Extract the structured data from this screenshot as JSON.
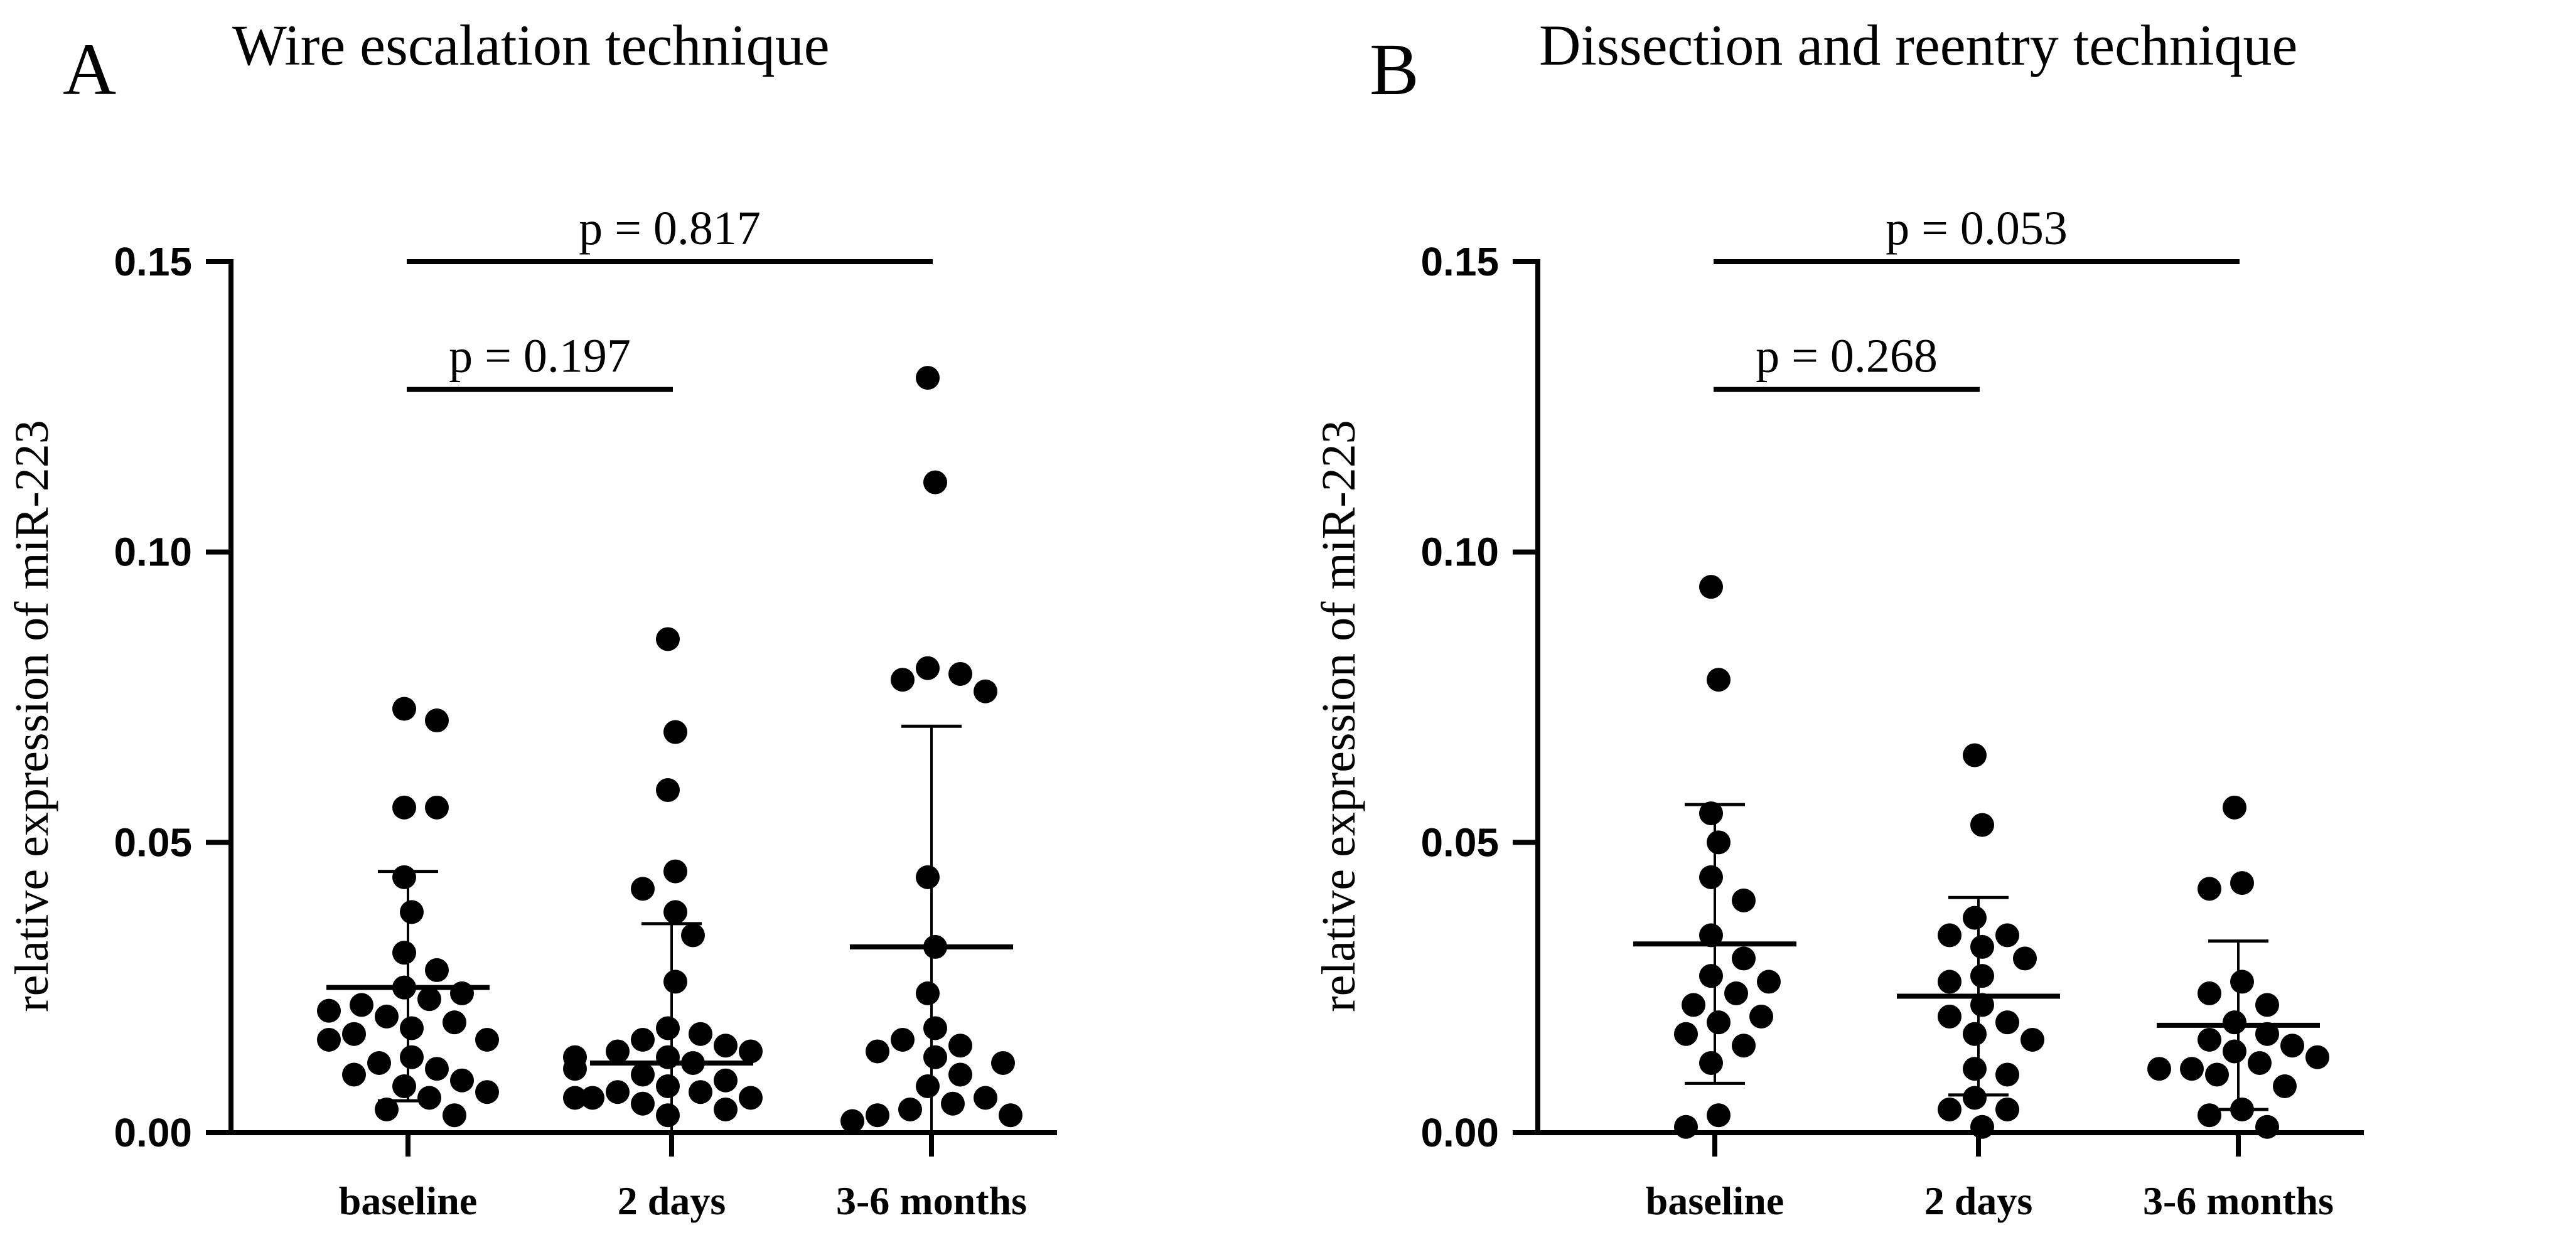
{
  "chart_data": [
    {
      "type": "scatter",
      "panel_label": "A",
      "title": "Wire escalation technique",
      "ylabel": "relative expression of miR-223",
      "xlabel": "",
      "categories": [
        "baseline",
        "2 days",
        "3-6 months"
      ],
      "ylim": [
        0,
        0.15
      ],
      "yticks": [
        "0.00",
        "0.05",
        "0.10",
        "0.15"
      ],
      "grid": false,
      "groups": [
        {
          "name": "baseline",
          "points": [
            0.073,
            0.071,
            0.056,
            0.056,
            0.044,
            0.038,
            0.031,
            0.028,
            0.025,
            0.024,
            0.023,
            0.022,
            0.021,
            0.02,
            0.019,
            0.018,
            0.017,
            0.016,
            0.016,
            0.013,
            0.012,
            0.011,
            0.01,
            0.009,
            0.008,
            0.007,
            0.006,
            0.004,
            0.003
          ],
          "mean": 0.025,
          "error_low": 0.0055,
          "error_high": 0.045
        },
        {
          "name": "2 days",
          "points": [
            0.085,
            0.069,
            0.059,
            0.045,
            0.042,
            0.038,
            0.034,
            0.026,
            0.018,
            0.017,
            0.016,
            0.015,
            0.014,
            0.014,
            0.013,
            0.013,
            0.012,
            0.011,
            0.01,
            0.009,
            0.008,
            0.007,
            0.007,
            0.006,
            0.006,
            0.006,
            0.005,
            0.004,
            0.003
          ],
          "mean": 0.012,
          "error_low": 0.0,
          "error_high": 0.036
        },
        {
          "name": "3-6 months",
          "points": [
            0.13,
            0.112,
            0.08,
            0.079,
            0.078,
            0.076,
            0.044,
            0.032,
            0.024,
            0.018,
            0.016,
            0.015,
            0.014,
            0.013,
            0.012,
            0.01,
            0.008,
            0.006,
            0.005,
            0.004,
            0.003,
            0.003,
            0.002
          ],
          "mean": 0.032,
          "error_low": 0.0,
          "error_high": 0.07
        }
      ],
      "comparisons": [
        {
          "from": 0,
          "to": 2,
          "label": "p = 0.817",
          "y": 0.15
        },
        {
          "from": 0,
          "to": 1,
          "label": "p = 0.197",
          "y": 0.128
        }
      ]
    },
    {
      "type": "scatter",
      "panel_label": "B",
      "title": "Dissection and reentry technique",
      "ylabel": "relative expression of miR-223",
      "xlabel": "",
      "categories": [
        "baseline",
        "2 days",
        "3-6 months"
      ],
      "ylim": [
        0,
        0.15
      ],
      "yticks": [
        "0.00",
        "0.05",
        "0.10",
        "0.15"
      ],
      "grid": false,
      "groups": [
        {
          "name": "baseline",
          "points": [
            0.094,
            0.078,
            0.055,
            0.05,
            0.044,
            0.04,
            0.034,
            0.03,
            0.027,
            0.026,
            0.024,
            0.022,
            0.02,
            0.019,
            0.017,
            0.015,
            0.012,
            0.003,
            0.001
          ],
          "mean": 0.0325,
          "error_low": 0.0085,
          "error_high": 0.0565
        },
        {
          "name": "2 days",
          "points": [
            0.065,
            0.053,
            0.037,
            0.034,
            0.034,
            0.032,
            0.03,
            0.027,
            0.026,
            0.022,
            0.02,
            0.019,
            0.017,
            0.016,
            0.011,
            0.01,
            0.006,
            0.004,
            0.004,
            0.001
          ],
          "mean": 0.0235,
          "error_low": 0.0065,
          "error_high": 0.0405
        },
        {
          "name": "3-6 months",
          "points": [
            0.056,
            0.043,
            0.042,
            0.026,
            0.024,
            0.022,
            0.019,
            0.017,
            0.016,
            0.015,
            0.014,
            0.013,
            0.012,
            0.011,
            0.011,
            0.01,
            0.008,
            0.004,
            0.003,
            0.001
          ],
          "mean": 0.0185,
          "error_low": 0.004,
          "error_high": 0.033
        }
      ],
      "comparisons": [
        {
          "from": 0,
          "to": 2,
          "label": "p = 0.053",
          "y": 0.15
        },
        {
          "from": 0,
          "to": 1,
          "label": "p = 0.268",
          "y": 0.128
        }
      ]
    }
  ]
}
